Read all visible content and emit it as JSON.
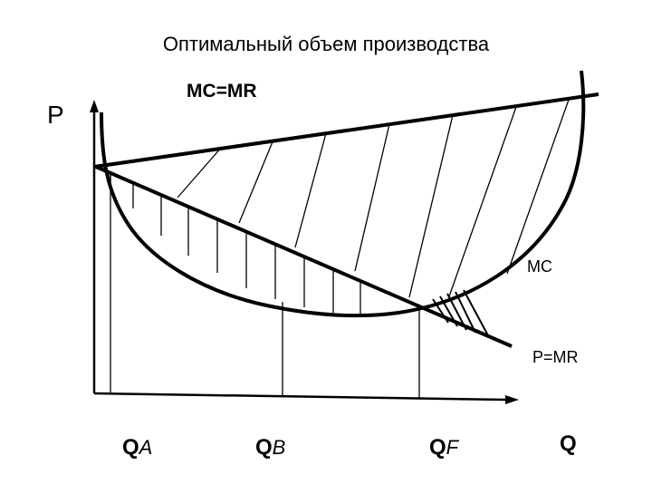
{
  "diagram": {
    "title": "Оптимальный объем производства",
    "labels": {
      "mc_eq_mr": "MC=MR",
      "p_axis": "P",
      "mc_curve": "MC",
      "p_eq_mr": "P=MR",
      "q_axis": "Q"
    },
    "q_points": [
      {
        "main": "Q",
        "sub": "A"
      },
      {
        "main": "Q",
        "sub": "B"
      },
      {
        "main": "Q",
        "sub": "F"
      }
    ],
    "colors": {
      "background": "#ffffff",
      "ink": "#000000"
    }
  }
}
